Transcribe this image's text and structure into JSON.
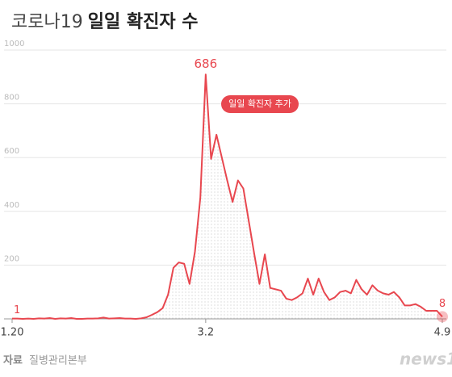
{
  "chart_data": {
    "type": "line",
    "title": [
      "코로나19",
      "일일 확진자 수"
    ],
    "categories": [
      "1.20",
      null,
      null,
      null,
      null,
      null,
      null,
      null,
      null,
      null,
      null,
      null,
      null,
      null,
      null,
      null,
      null,
      null,
      null,
      null,
      null,
      null,
      null,
      null,
      null,
      null,
      null,
      null,
      null,
      null,
      null,
      null,
      null,
      null,
      null,
      null,
      "3.2",
      null,
      null,
      null,
      null,
      null,
      null,
      null,
      null,
      null,
      null,
      null,
      null,
      null,
      null,
      null,
      null,
      null,
      null,
      null,
      null,
      null,
      null,
      null,
      null,
      null,
      null,
      null,
      null,
      null,
      null,
      null,
      null,
      null,
      null,
      null,
      null,
      null,
      null,
      null,
      null,
      null,
      null,
      null,
      "4.9"
    ],
    "values": [
      1,
      1,
      0,
      1,
      0,
      2,
      1,
      3,
      0,
      2,
      1,
      3,
      0,
      0,
      1,
      1,
      2,
      5,
      1,
      2,
      3,
      1,
      1,
      0,
      2,
      6,
      15,
      25,
      40,
      90,
      190,
      210,
      205,
      130,
      250,
      450,
      909,
      595,
      685,
      600,
      515,
      435,
      515,
      485,
      365,
      245,
      130,
      240,
      115,
      110,
      105,
      75,
      70,
      80,
      95,
      150,
      90,
      150,
      100,
      70,
      80,
      100,
      105,
      95,
      145,
      110,
      90,
      125,
      105,
      95,
      90,
      100,
      80,
      50,
      50,
      55,
      45,
      30,
      30,
      30,
      8
    ],
    "color": "#e8474f",
    "ylim": [
      0,
      1000
    ],
    "yticks": [
      200,
      400,
      600,
      800,
      1000
    ],
    "grid": true,
    "annotations": [
      "686",
      "일일 확진자 추가"
    ],
    "source_label": "자료",
    "source": "질병관리본부",
    "logo": "news1"
  }
}
